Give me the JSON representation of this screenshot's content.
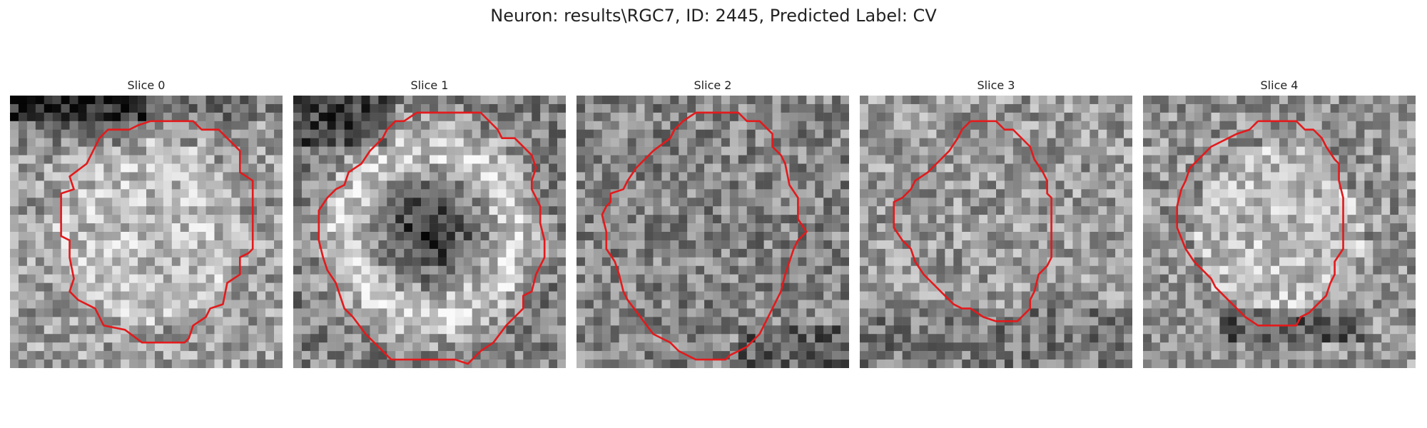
{
  "figure": {
    "suptitle": "Neuron: results\\RGC7, ID: 2445, Predicted Label: CV",
    "colors": {
      "background": "#ffffff",
      "contour": "#e31a1c",
      "text": "#222222"
    },
    "colormap": "grayscale",
    "grid_size": 32,
    "panels": [
      {
        "title": "Slice 0",
        "seed": 11,
        "contour_color": "#e31a1c",
        "tone": "bright-disc-dark-top-left"
      },
      {
        "title": "Slice 1",
        "seed": 23,
        "contour_color": "#e31a1c",
        "tone": "bright-ring-dark-center"
      },
      {
        "title": "Slice 2",
        "seed": 37,
        "contour_color": "#e31a1c",
        "tone": "noisy-mid"
      },
      {
        "title": "Slice 3",
        "seed": 41,
        "contour_color": "#e31a1c",
        "tone": "noisy-light"
      },
      {
        "title": "Slice 4",
        "seed": 53,
        "contour_color": "#e31a1c",
        "tone": "bright-disc-dark-bottom"
      }
    ]
  }
}
